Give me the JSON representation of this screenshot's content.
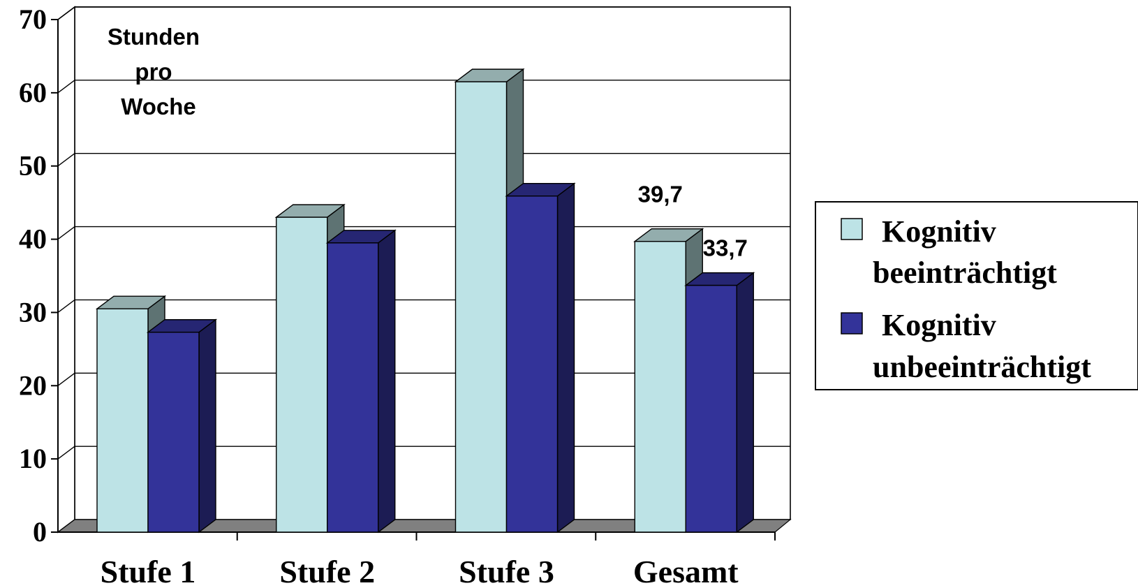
{
  "chart_data": {
    "type": "bar",
    "style": "3d-clustered-column",
    "categories": [
      "Stufe 1",
      "Stufe 2",
      "Stufe 3",
      "Gesamt"
    ],
    "series": [
      {
        "name": "Kognitiv beeinträchtigt",
        "values": [
          30.5,
          43,
          61.5,
          39.7
        ],
        "color": "#bde3e6"
      },
      {
        "name": "Kognitiv unbeeinträchtigt",
        "values": [
          27.3,
          39.5,
          45.9,
          33.7
        ],
        "color": "#333399"
      }
    ],
    "unit_label": [
      "Stunden",
      "pro",
      "Woche"
    ],
    "data_labels": [
      {
        "category": "Gesamt",
        "series": 0,
        "text": "39,7"
      },
      {
        "category": "Gesamt",
        "series": 1,
        "text": "33,7"
      }
    ],
    "yticks": [
      0,
      10,
      20,
      30,
      40,
      50,
      60,
      70
    ],
    "ylim": [
      0,
      70
    ],
    "grid": true,
    "legend_position": "right",
    "legend": [
      {
        "line1": "Kognitiv",
        "line2": "beeinträchtigt"
      },
      {
        "line1": "Kognitiv",
        "line2": "unbeeinträchtigt"
      }
    ]
  }
}
